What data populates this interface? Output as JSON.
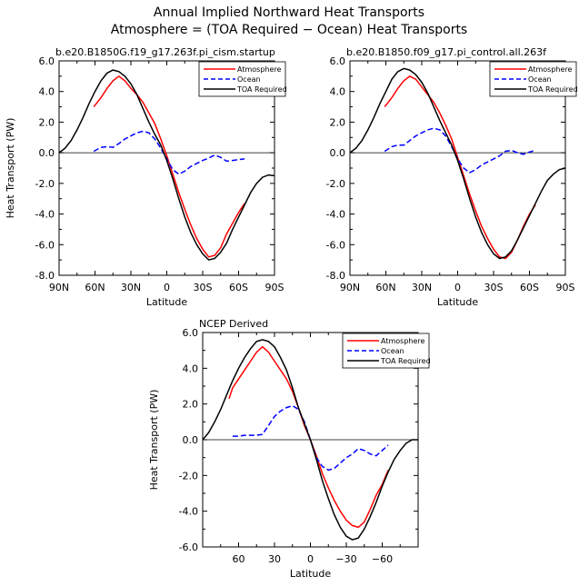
{
  "figure": {
    "title_line1": "Annual Implied Northward Heat Transports",
    "title_line2": "Atmosphere = (TOA Required − Ocean) Heat Transports"
  },
  "colors": {
    "atmosphere": "#ff0000",
    "ocean": "#0000ff",
    "toa": "#000000"
  },
  "chart_data": [
    {
      "type": "line",
      "title": "b.e20.B1850G.f19_g17.263f.pi_cism.startup",
      "xlabel": "Latitude",
      "ylabel": "Heat Transport (PW)",
      "xlim": [
        90,
        -90
      ],
      "ylim": [
        -8,
        6
      ],
      "xticks": [
        90,
        60,
        30,
        0,
        -30,
        -60,
        -90
      ],
      "xtick_labels": [
        "90N",
        "60N",
        "30N",
        "0",
        "30S",
        "60S",
        "90S"
      ],
      "yticks": [
        6,
        4,
        2,
        0,
        -2,
        -4,
        -6,
        -8
      ],
      "ytick_labels": [
        "6.0",
        "4.0",
        "2.0",
        "0.0",
        "-2.0",
        "-4.0",
        "-6.0",
        "-8.0"
      ],
      "legend": [
        "Atmosphere",
        "Ocean",
        "TOA Required"
      ],
      "legend_position": "top-right",
      "series": [
        {
          "name": "Atmosphere",
          "x": [
            61,
            55,
            50,
            45,
            40,
            35,
            30,
            25,
            20,
            15,
            10,
            5,
            0,
            -5,
            -10,
            -15,
            -20,
            -25,
            -30,
            -35,
            -40,
            -45,
            -50,
            -55,
            -60,
            -65
          ],
          "y": [
            3.0,
            3.6,
            4.2,
            4.7,
            5.0,
            4.7,
            4.2,
            3.8,
            3.3,
            2.6,
            1.9,
            0.9,
            -0.2,
            -1.4,
            -2.6,
            -3.7,
            -4.7,
            -5.6,
            -6.3,
            -6.8,
            -6.7,
            -6.2,
            -5.3,
            -4.6,
            -3.9,
            -3.3
          ]
        },
        {
          "name": "Ocean",
          "x": [
            61,
            55,
            50,
            45,
            40,
            35,
            30,
            25,
            20,
            15,
            10,
            5,
            0,
            -5,
            -10,
            -15,
            -20,
            -25,
            -30,
            -35,
            -40,
            -45,
            -50,
            -55,
            -60,
            -65
          ],
          "y": [
            0.1,
            0.35,
            0.4,
            0.35,
            0.6,
            0.9,
            1.1,
            1.3,
            1.4,
            1.3,
            0.9,
            0.3,
            -0.4,
            -1.1,
            -1.4,
            -1.2,
            -0.9,
            -0.7,
            -0.5,
            -0.35,
            -0.15,
            -0.3,
            -0.55,
            -0.5,
            -0.45,
            -0.4
          ]
        },
        {
          "name": "TOA Required",
          "x": [
            90,
            85,
            80,
            75,
            70,
            65,
            60,
            55,
            50,
            45,
            40,
            35,
            30,
            25,
            20,
            15,
            10,
            5,
            0,
            -5,
            -10,
            -15,
            -20,
            -25,
            -30,
            -35,
            -40,
            -45,
            -50,
            -55,
            -60,
            -65,
            -70,
            -75,
            -80,
            -85,
            -90
          ],
          "y": [
            0.0,
            0.3,
            0.8,
            1.5,
            2.3,
            3.2,
            4.0,
            4.7,
            5.2,
            5.4,
            5.3,
            5.0,
            4.5,
            3.8,
            2.9,
            2.0,
            1.2,
            0.5,
            -0.5,
            -1.7,
            -3.0,
            -4.2,
            -5.2,
            -6.0,
            -6.6,
            -7.0,
            -6.9,
            -6.5,
            -5.9,
            -5.0,
            -4.2,
            -3.4,
            -2.6,
            -2.0,
            -1.6,
            -1.45,
            -1.5
          ]
        }
      ]
    },
    {
      "type": "line",
      "title": "b.e20.B1850.f09_g17.pi_control.all.263f",
      "xlabel": "Latitude",
      "ylabel": "",
      "xlim": [
        90,
        -90
      ],
      "ylim": [
        -8,
        6
      ],
      "xticks": [
        90,
        60,
        30,
        0,
        -30,
        -60,
        -90
      ],
      "xtick_labels": [
        "90N",
        "60N",
        "30N",
        "0",
        "30S",
        "60S",
        "90S"
      ],
      "yticks": [
        6,
        4,
        2,
        0,
        -2,
        -4,
        -6,
        -8
      ],
      "ytick_labels": [
        "6.0",
        "4.0",
        "2.0",
        "0.0",
        "-2.0",
        "-4.0",
        "-6.0",
        "-8.0"
      ],
      "legend": [
        "Atmosphere",
        "Ocean",
        "TOA Required"
      ],
      "legend_position": "top-right",
      "series": [
        {
          "name": "Atmosphere",
          "x": [
            61,
            55,
            50,
            45,
            40,
            35,
            30,
            25,
            20,
            15,
            10,
            5,
            0,
            -5,
            -10,
            -15,
            -20,
            -25,
            -30,
            -35,
            -40,
            -45,
            -50,
            -55,
            -60,
            -65
          ],
          "y": [
            3.0,
            3.6,
            4.2,
            4.7,
            5.0,
            4.8,
            4.3,
            3.8,
            3.3,
            2.6,
            1.8,
            0.9,
            -0.3,
            -1.5,
            -2.7,
            -3.8,
            -4.8,
            -5.6,
            -6.3,
            -6.8,
            -6.9,
            -6.5,
            -5.7,
            -4.8,
            -4.0,
            -3.4
          ]
        },
        {
          "name": "Ocean",
          "x": [
            61,
            55,
            50,
            45,
            40,
            35,
            30,
            25,
            20,
            15,
            10,
            5,
            0,
            -5,
            -10,
            -15,
            -20,
            -25,
            -30,
            -35,
            -40,
            -45,
            -50,
            -55,
            -60,
            -65
          ],
          "y": [
            0.1,
            0.4,
            0.5,
            0.5,
            0.8,
            1.1,
            1.3,
            1.5,
            1.6,
            1.5,
            1.1,
            0.4,
            -0.4,
            -1.0,
            -1.3,
            -1.1,
            -0.8,
            -0.6,
            -0.4,
            -0.2,
            0.1,
            0.15,
            0.0,
            -0.1,
            0.05,
            0.15
          ]
        },
        {
          "name": "TOA Required",
          "x": [
            90,
            85,
            80,
            75,
            70,
            65,
            60,
            55,
            50,
            45,
            40,
            35,
            30,
            25,
            20,
            15,
            10,
            5,
            0,
            -5,
            -10,
            -15,
            -20,
            -25,
            -30,
            -35,
            -40,
            -45,
            -50,
            -55,
            -60,
            -65,
            -70,
            -75,
            -80,
            -85,
            -90
          ],
          "y": [
            0.0,
            0.3,
            0.8,
            1.5,
            2.3,
            3.2,
            4.0,
            4.8,
            5.3,
            5.5,
            5.4,
            5.1,
            4.6,
            3.9,
            3.0,
            2.1,
            1.3,
            0.5,
            -0.5,
            -1.7,
            -3.0,
            -4.2,
            -5.2,
            -6.0,
            -6.6,
            -6.9,
            -6.8,
            -6.4,
            -5.7,
            -4.9,
            -4.1,
            -3.3,
            -2.5,
            -1.8,
            -1.4,
            -1.1,
            -1.0
          ]
        }
      ]
    },
    {
      "type": "line",
      "title": "NCEP Derived",
      "xlabel": "Latitude",
      "ylabel": "Heat Transport (PW)",
      "xlim": [
        90,
        -90
      ],
      "ylim": [
        -6,
        6
      ],
      "xticks": [
        60,
        30,
        0,
        -30,
        -60
      ],
      "xtick_labels": [
        "60",
        "30",
        "0",
        "−30",
        "−60"
      ],
      "yticks": [
        6,
        4,
        2,
        0,
        -2,
        -4,
        -6
      ],
      "ytick_labels": [
        "6.0",
        "4.0",
        "2.0",
        "0.0",
        "-2.0",
        "-4.0",
        "-6.0"
      ],
      "legend": [
        "Atmosphere",
        "Ocean",
        "TOA Required"
      ],
      "legend_position": "top-right",
      "series": [
        {
          "name": "Atmosphere",
          "x": [
            68,
            65,
            60,
            55,
            50,
            45,
            40,
            35,
            30,
            25,
            20,
            15,
            10,
            5,
            0,
            -5,
            -10,
            -15,
            -20,
            -25,
            -30,
            -35,
            -40,
            -45,
            -50,
            -55,
            -60,
            -65
          ],
          "y": [
            2.3,
            2.9,
            3.4,
            3.9,
            4.4,
            4.9,
            5.2,
            4.9,
            4.4,
            3.9,
            3.4,
            2.7,
            1.8,
            0.8,
            0.0,
            -0.9,
            -1.9,
            -2.7,
            -3.4,
            -4.0,
            -4.5,
            -4.8,
            -4.9,
            -4.6,
            -3.9,
            -3.1,
            -2.5,
            -1.7
          ]
        },
        {
          "name": "Ocean",
          "x": [
            65,
            60,
            55,
            50,
            45,
            40,
            35,
            30,
            25,
            20,
            15,
            10,
            5,
            0,
            -5,
            -10,
            -15,
            -20,
            -25,
            -30,
            -35,
            -40,
            -45,
            -50,
            -55,
            -60,
            -65
          ],
          "y": [
            0.2,
            0.2,
            0.25,
            0.25,
            0.25,
            0.3,
            0.8,
            1.3,
            1.6,
            1.8,
            1.9,
            1.7,
            1.0,
            0.0,
            -1.0,
            -1.5,
            -1.7,
            -1.6,
            -1.3,
            -1.0,
            -0.8,
            -0.5,
            -0.6,
            -0.8,
            -0.9,
            -0.6,
            -0.3
          ]
        },
        {
          "name": "TOA Required",
          "x": [
            90,
            85,
            80,
            75,
            70,
            65,
            60,
            55,
            50,
            45,
            40,
            35,
            30,
            25,
            20,
            15,
            10,
            5,
            0,
            -5,
            -10,
            -15,
            -20,
            -25,
            -30,
            -35,
            -40,
            -45,
            -50,
            -55,
            -60,
            -65,
            -70,
            -75,
            -80,
            -85,
            -90
          ],
          "y": [
            0.0,
            0.4,
            1.0,
            1.7,
            2.5,
            3.3,
            4.0,
            4.6,
            5.1,
            5.5,
            5.6,
            5.5,
            5.2,
            4.6,
            3.9,
            2.9,
            1.8,
            0.9,
            0.0,
            -1.1,
            -2.3,
            -3.3,
            -4.2,
            -4.9,
            -5.4,
            -5.6,
            -5.5,
            -5.0,
            -4.3,
            -3.5,
            -2.6,
            -1.8,
            -1.1,
            -0.6,
            -0.2,
            0.0,
            0.0
          ]
        }
      ]
    }
  ]
}
